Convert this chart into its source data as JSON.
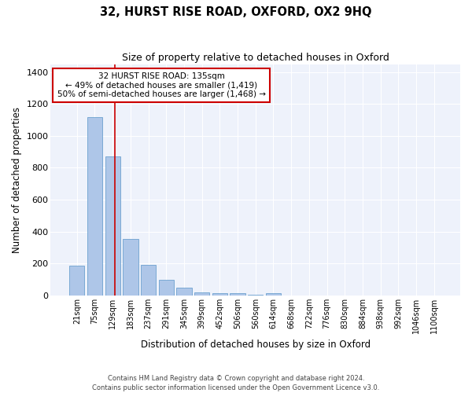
{
  "title1": "32, HURST RISE ROAD, OXFORD, OX2 9HQ",
  "title2": "Size of property relative to detached houses in Oxford",
  "xlabel": "Distribution of detached houses by size in Oxford",
  "ylabel": "Number of detached properties",
  "bin_labels": [
    "21sqm",
    "75sqm",
    "129sqm",
    "183sqm",
    "237sqm",
    "291sqm",
    "345sqm",
    "399sqm",
    "452sqm",
    "506sqm",
    "560sqm",
    "614sqm",
    "668sqm",
    "722sqm",
    "776sqm",
    "830sqm",
    "884sqm",
    "938sqm",
    "992sqm",
    "1046sqm",
    "1100sqm"
  ],
  "bar_heights": [
    185,
    1120,
    870,
    355,
    190,
    95,
    50,
    20,
    15,
    15,
    5,
    15,
    0,
    0,
    0,
    0,
    0,
    0,
    0,
    0,
    0
  ],
  "bar_color": "#aec6e8",
  "bar_edge_color": "#5a96c8",
  "background_color": "#eef2fb",
  "grid_color": "#ffffff",
  "vline_x": 2.11,
  "vline_color": "#cc0000",
  "annotation_text": "32 HURST RISE ROAD: 135sqm\n← 49% of detached houses are smaller (1,419)\n50% of semi-detached houses are larger (1,468) →",
  "annotation_box_color": "#cc0000",
  "footnote": "Contains HM Land Registry data © Crown copyright and database right 2024.\nContains public sector information licensed under the Open Government Licence v3.0.",
  "ylim": [
    0,
    1450
  ],
  "yticks": [
    0,
    200,
    400,
    600,
    800,
    1000,
    1200,
    1400
  ],
  "figwidth": 6.0,
  "figheight": 5.0,
  "dpi": 100
}
